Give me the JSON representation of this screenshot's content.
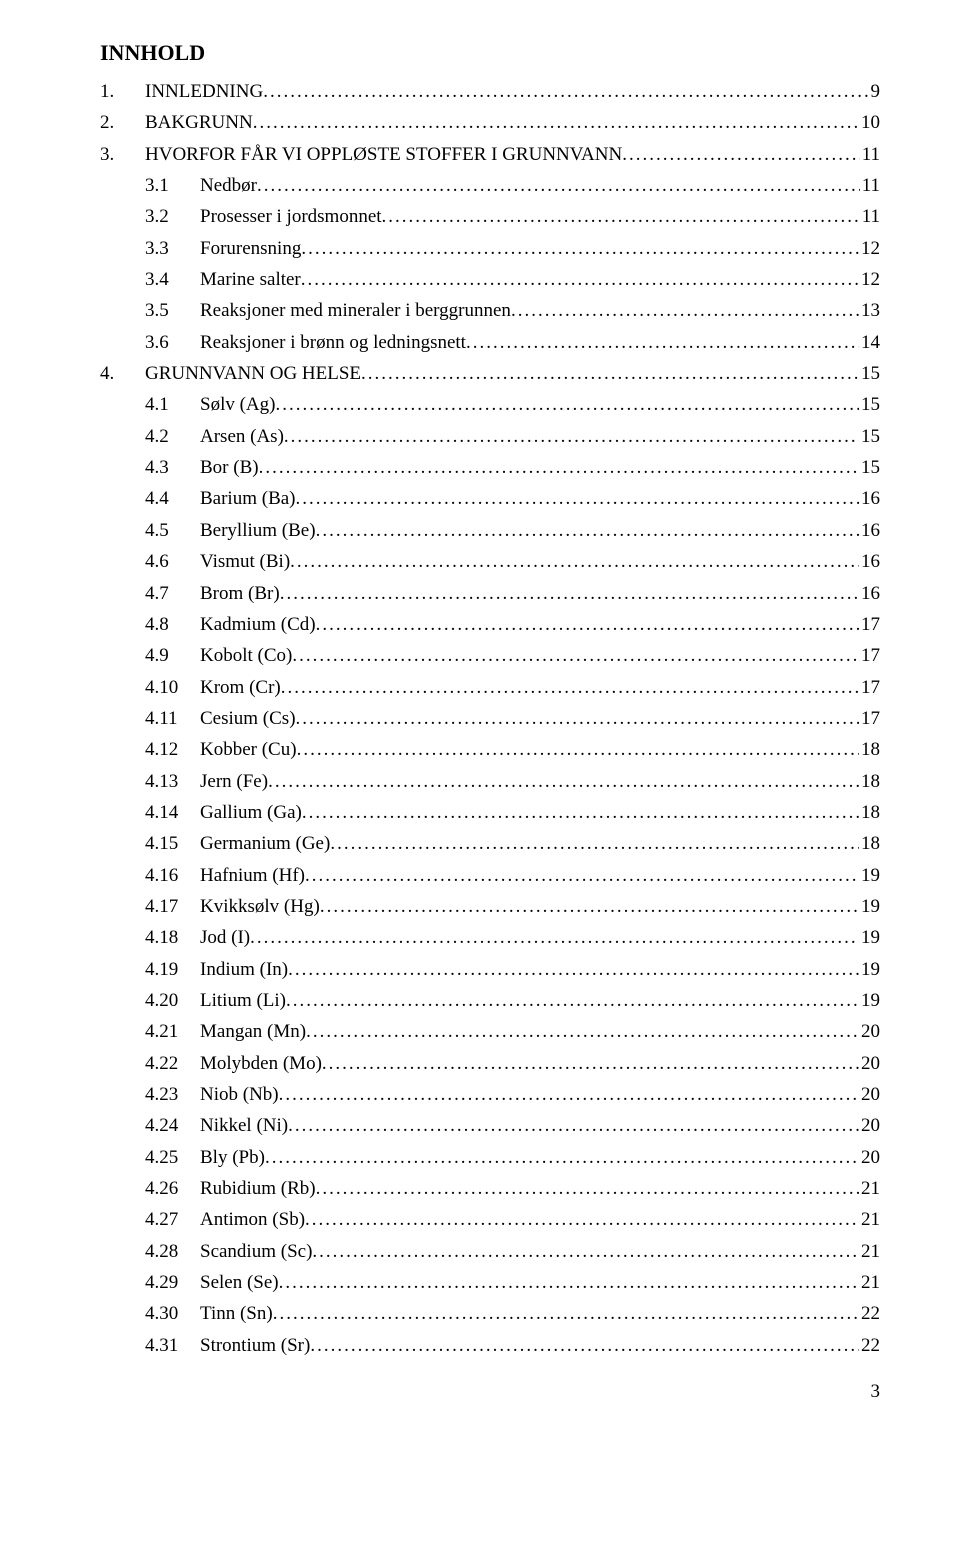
{
  "title": "INNHOLD",
  "page_number": "3",
  "entries": [
    {
      "level": 0,
      "num": "1.",
      "label": "INNLEDNING",
      "page": "9"
    },
    {
      "level": 0,
      "num": "2.",
      "label": "BAKGRUNN",
      "page": "10"
    },
    {
      "level": 0,
      "num": "3.",
      "label": "HVORFOR FÅR VI OPPLØSTE STOFFER I GRUNNVANN",
      "page": "11"
    },
    {
      "level": 1,
      "num": "3.1",
      "label": "Nedbør",
      "page": "11"
    },
    {
      "level": 1,
      "num": "3.2",
      "label": "Prosesser i jordsmonnet",
      "page": "11"
    },
    {
      "level": 1,
      "num": "3.3",
      "label": "Forurensning",
      "page": "12"
    },
    {
      "level": 1,
      "num": "3.4",
      "label": "Marine salter",
      "page": "12"
    },
    {
      "level": 1,
      "num": "3.5",
      "label": "Reaksjoner med mineraler i berggrunnen",
      "page": "13"
    },
    {
      "level": 1,
      "num": "3.6",
      "label": "Reaksjoner i brønn og ledningsnett",
      "page": "14"
    },
    {
      "level": 0,
      "num": "4.",
      "label": "GRUNNVANN OG HELSE",
      "page": "15"
    },
    {
      "level": 1,
      "num": "4.1",
      "label": "Sølv (Ag)",
      "page": "15"
    },
    {
      "level": 1,
      "num": "4.2",
      "label": "Arsen (As)",
      "page": "15"
    },
    {
      "level": 1,
      "num": "4.3",
      "label": "Bor (B)",
      "page": "15"
    },
    {
      "level": 1,
      "num": "4.4",
      "label": "Barium (Ba)",
      "page": "16"
    },
    {
      "level": 1,
      "num": "4.5",
      "label": "Beryllium (Be)",
      "page": "16"
    },
    {
      "level": 1,
      "num": "4.6",
      "label": "Vismut (Bi)",
      "page": "16"
    },
    {
      "level": 1,
      "num": "4.7",
      "label": "Brom (Br)",
      "page": "16"
    },
    {
      "level": 1,
      "num": "4.8",
      "label": "Kadmium (Cd)",
      "page": "17"
    },
    {
      "level": 1,
      "num": "4.9",
      "label": "Kobolt (Co)",
      "page": "17"
    },
    {
      "level": 1,
      "num": "4.10",
      "label": "Krom (Cr)",
      "page": "17"
    },
    {
      "level": 1,
      "num": "4.11",
      "label": "Cesium (Cs)",
      "page": "17"
    },
    {
      "level": 1,
      "num": "4.12",
      "label": "Kobber (Cu)",
      "page": "18"
    },
    {
      "level": 1,
      "num": "4.13",
      "label": "Jern (Fe)",
      "page": "18"
    },
    {
      "level": 1,
      "num": "4.14",
      "label": "Gallium (Ga)",
      "page": "18"
    },
    {
      "level": 1,
      "num": "4.15",
      "label": "Germanium (Ge)",
      "page": "18"
    },
    {
      "level": 1,
      "num": "4.16",
      "label": "Hafnium (Hf)",
      "page": "19"
    },
    {
      "level": 1,
      "num": "4.17",
      "label": "Kvikksølv (Hg)",
      "page": "19"
    },
    {
      "level": 1,
      "num": "4.18",
      "label": "Jod (I)",
      "page": "19"
    },
    {
      "level": 1,
      "num": "4.19",
      "label": "Indium (In)",
      "page": "19"
    },
    {
      "level": 1,
      "num": "4.20",
      "label": "Litium (Li)",
      "page": "19"
    },
    {
      "level": 1,
      "num": "4.21",
      "label": "Mangan (Mn)",
      "page": "20"
    },
    {
      "level": 1,
      "num": "4.22",
      "label": "Molybden (Mo)",
      "page": "20"
    },
    {
      "level": 1,
      "num": "4.23",
      "label": "Niob (Nb)",
      "page": "20"
    },
    {
      "level": 1,
      "num": "4.24",
      "label": "Nikkel (Ni)",
      "page": "20"
    },
    {
      "level": 1,
      "num": "4.25",
      "label": "Bly (Pb)",
      "page": "20"
    },
    {
      "level": 1,
      "num": "4.26",
      "label": "Rubidium (Rb)",
      "page": "21"
    },
    {
      "level": 1,
      "num": "4.27",
      "label": "Antimon (Sb)",
      "page": "21"
    },
    {
      "level": 1,
      "num": "4.28",
      "label": "Scandium (Sc)",
      "page": "21"
    },
    {
      "level": 1,
      "num": "4.29",
      "label": "Selen (Se)",
      "page": "21"
    },
    {
      "level": 1,
      "num": "4.30",
      "label": "Tinn (Sn)",
      "page": "22"
    },
    {
      "level": 1,
      "num": "4.31",
      "label": "Strontium (Sr)",
      "page": "22"
    }
  ]
}
